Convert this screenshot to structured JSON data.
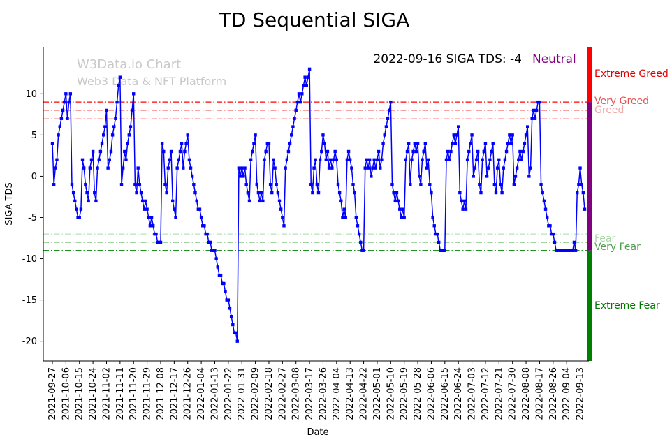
{
  "title": "TD Sequential SIGA",
  "watermark": {
    "line1": "W3Data.io Chart",
    "line2": "Web3 Data & NFT Platform"
  },
  "annotation": {
    "text": "2022-09-16 SIGA TDS: -4",
    "status": "Neutral"
  },
  "colors": {
    "line": "#0000ff",
    "neutral": "#800080",
    "greed": "#ff0000",
    "fear": "#008000",
    "watermark": "#c9c9c9",
    "annotation_text": "#000000"
  },
  "zone_labels": [
    {
      "label": "Extreme Greed",
      "color": "#e00000"
    },
    {
      "label": "Very Greed",
      "color": "#e85050"
    },
    {
      "label": "Greed",
      "color": "#f0a8a8"
    },
    {
      "label": "Fear",
      "color": "#a8d8a8"
    },
    {
      "label": "Very Fear",
      "color": "#50a050"
    },
    {
      "label": "Extreme Fear",
      "color": "#007700"
    }
  ],
  "chart_data": {
    "type": "line",
    "title": "TD Sequential SIGA",
    "xlabel": "Date",
    "ylabel": "SIGA TDS",
    "x_start_date": "2021-09-27",
    "x_end_date": "2022-09-16",
    "x_frequency": "daily",
    "x_tick_interval_days": 9,
    "x_tick_labels": [
      "2021-09-27",
      "2021-10-06",
      "2021-10-15",
      "2021-10-24",
      "2021-11-02",
      "2021-11-11",
      "2021-11-20",
      "2021-11-29",
      "2021-12-08",
      "2021-12-17",
      "2021-12-26",
      "2022-01-04",
      "2022-01-13",
      "2022-01-22",
      "2022-01-31",
      "2022-02-09",
      "2022-02-18",
      "2022-02-27",
      "2022-03-08",
      "2022-03-17",
      "2022-03-26",
      "2022-04-04",
      "2022-04-13",
      "2022-04-22",
      "2022-05-01",
      "2022-05-10",
      "2022-05-19",
      "2022-05-28",
      "2022-06-06",
      "2022-06-15",
      "2022-06-24",
      "2022-07-03",
      "2022-07-12",
      "2022-07-21",
      "2022-07-30",
      "2022-08-08",
      "2022-08-17",
      "2022-08-26",
      "2022-09-04",
      "2022-09-13"
    ],
    "y_ticks": [
      -20,
      -15,
      -10,
      -5,
      0,
      5,
      10
    ],
    "ylim": [
      -22.4,
      15.7
    ],
    "line_color": "#0000ff",
    "marker": "square",
    "latest": {
      "date": "2022-09-16",
      "value": -4,
      "sentiment": "Neutral"
    },
    "thresholds": [
      {
        "value": 9,
        "label": "Extreme Greed",
        "color": "#ff0000"
      },
      {
        "value": 8,
        "label": "Very Greed",
        "color": "#ee4444"
      },
      {
        "value": 7,
        "label": "Greed",
        "color": "#ffb6b6"
      },
      {
        "value": -7,
        "label": "Fear",
        "color": "#b8e0b8"
      },
      {
        "value": -8,
        "label": "Very Fear",
        "color": "#44aa44"
      },
      {
        "value": -9,
        "label": "Extreme Fear",
        "color": "#008000"
      }
    ],
    "sentiment_bar": {
      "greed_color": "#ff0000",
      "neutral_color": "#800080",
      "fear_color": "#008000",
      "boundaries": [
        9,
        -9
      ]
    },
    "values": [
      4,
      -1,
      1,
      2,
      5,
      6,
      7,
      8,
      9,
      10,
      7,
      9,
      10,
      -1,
      -2,
      -3,
      -4,
      -5,
      -5,
      -4,
      2,
      1,
      -1,
      -2,
      -3,
      1,
      2,
      3,
      -2,
      -3,
      1,
      2,
      3,
      4,
      5,
      6,
      8,
      1,
      2,
      3,
      5,
      6,
      7,
      9,
      11,
      12,
      -1,
      1,
      3,
      2,
      4,
      5,
      6,
      8,
      10,
      -1,
      -2,
      1,
      -1,
      -2,
      -3,
      -4,
      -3,
      -4,
      -5,
      -6,
      -5,
      -6,
      -7,
      -7,
      -8,
      -8,
      -8,
      4,
      3,
      -1,
      -2,
      1,
      2,
      3,
      -3,
      -4,
      -5,
      1,
      2,
      3,
      4,
      1,
      3,
      4,
      5,
      2,
      1,
      0,
      -1,
      -2,
      -3,
      -4,
      -4,
      -5,
      -6,
      -6,
      -7,
      -7,
      -8,
      -8,
      -9,
      -9,
      -9,
      -10,
      -11,
      -12,
      -12,
      -13,
      -13,
      -14,
      -15,
      -15,
      -16,
      -17,
      -18,
      -19,
      -19,
      -20,
      1,
      0,
      1,
      0,
      1,
      -1,
      -2,
      -3,
      2,
      3,
      4,
      5,
      -1,
      -2,
      -3,
      -2,
      -3,
      2,
      3,
      4,
      4,
      -1,
      -2,
      2,
      1,
      -1,
      -2,
      -3,
      -4,
      -5,
      -6,
      1,
      2,
      3,
      4,
      5,
      6,
      7,
      8,
      9,
      10,
      9,
      10,
      11,
      12,
      11,
      12,
      13,
      -1,
      -2,
      1,
      2,
      -1,
      -2,
      2,
      3,
      5,
      4,
      2,
      3,
      1,
      2,
      1,
      2,
      3,
      2,
      -1,
      -2,
      -3,
      -5,
      -4,
      -5,
      2,
      3,
      2,
      1,
      -1,
      -2,
      -5,
      -6,
      -7,
      -8,
      -9,
      -9,
      1,
      2,
      1,
      2,
      0,
      1,
      2,
      1,
      2,
      3,
      1,
      2,
      4,
      5,
      6,
      7,
      8,
      9,
      -1,
      -2,
      -3,
      -2,
      -3,
      -4,
      -5,
      -4,
      -5,
      2,
      3,
      4,
      -1,
      2,
      3,
      4,
      3,
      4,
      0,
      -1,
      2,
      3,
      4,
      1,
      2,
      -1,
      -2,
      -5,
      -6,
      -7,
      -7,
      -8,
      -9,
      -9,
      -9,
      -9,
      2,
      3,
      2,
      3,
      4,
      5,
      4,
      5,
      6,
      -2,
      -3,
      -4,
      -3,
      -4,
      2,
      3,
      4,
      5,
      0,
      1,
      2,
      3,
      -1,
      -2,
      2,
      3,
      4,
      0,
      1,
      2,
      3,
      4,
      -1,
      -2,
      1,
      2,
      -1,
      -2,
      1,
      2,
      3,
      4,
      5,
      4,
      5,
      -1,
      0,
      1,
      2,
      3,
      2,
      3,
      4,
      5,
      6,
      0,
      1,
      7,
      8,
      7,
      8,
      9,
      9,
      -1,
      -2,
      -3,
      -4,
      -5,
      -6,
      -6,
      -7,
      -7,
      -8,
      -9,
      -9,
      -9,
      -9,
      -9,
      -9,
      -9,
      -9,
      -9,
      -9,
      -9,
      -9,
      -8,
      -9,
      -2,
      -1,
      1,
      -1,
      -2,
      -4
    ]
  }
}
